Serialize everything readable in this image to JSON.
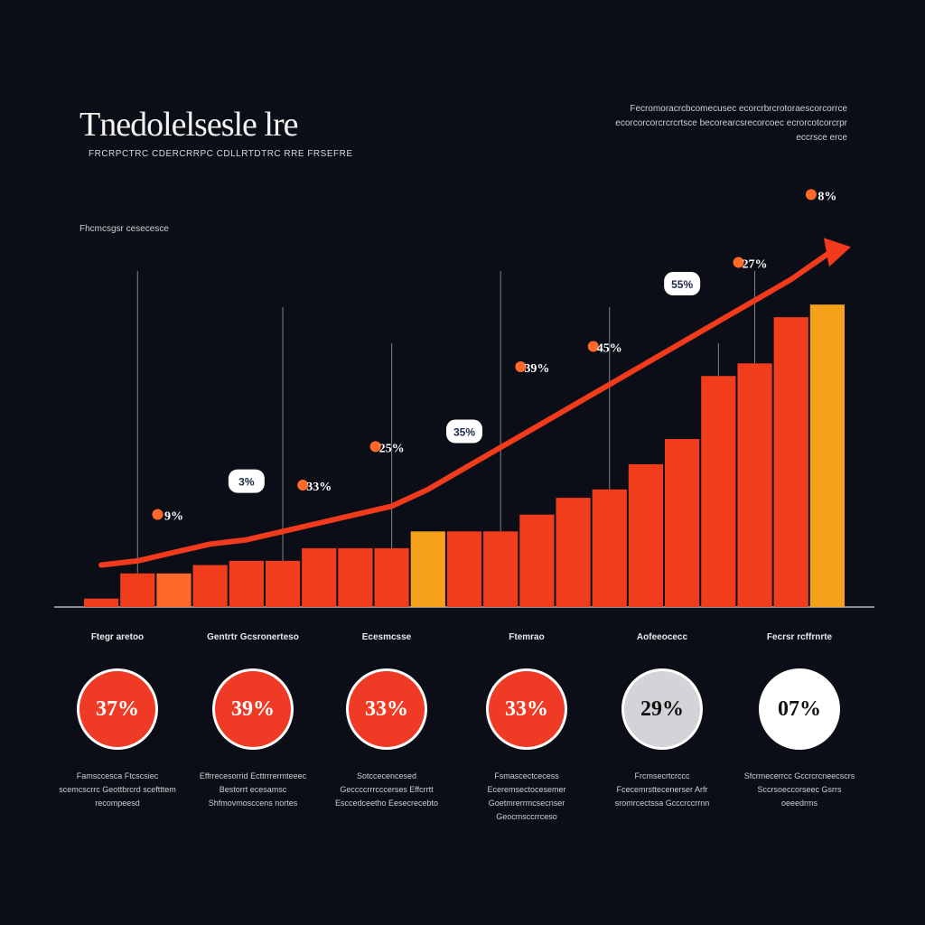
{
  "header": {
    "title": "Tnedolelsesle lre",
    "subtitle": "FRCRPCTRC CDERCRRPC CDLLRTDTRC RRE FRSEFRE",
    "note_top": "Fecromoracrcbcomecusec ecorcrbrcrotoraescorcorrce ecorcorcorcrcrcrtsce becorearcsrecorcoec ecrorcotcorcrpr eccrsce erce",
    "left_note": "Fhcmcsgsr cesecesce"
  },
  "colors": {
    "background": "#0b0e17",
    "bar_red": "#f23d1c",
    "bar_orange": "#ff6a2a",
    "bar_amber": "#f5a11a",
    "trend": "#f23a1c",
    "circle_red": "#ef3b25",
    "circle_grey": "#d4d4d8",
    "circle_white": "#ffffff"
  },
  "chart_data": {
    "type": "bar",
    "title": "Tnedolelsesle lre",
    "values": [
      2,
      8,
      8,
      10,
      11,
      11,
      14,
      14,
      14,
      18,
      18,
      18,
      22,
      26,
      28,
      34,
      40,
      55,
      58,
      69,
      72
    ],
    "bar_colors": [
      "red",
      "red",
      "orange",
      "red",
      "red",
      "red",
      "red",
      "red",
      "red",
      "amber",
      "red",
      "red",
      "red",
      "red",
      "red",
      "red",
      "red",
      "red",
      "red",
      "red",
      "amber"
    ],
    "trend_series": [
      {
        "name": "trend",
        "values": [
          10,
          11,
          13,
          15,
          16,
          18,
          20,
          22,
          24,
          28,
          33,
          38,
          43,
          48,
          53,
          58,
          63,
          68,
          73,
          78,
          84
        ]
      }
    ],
    "annotations": [
      "9%",
      "3%",
      "33%",
      "25%",
      "35%",
      "39%",
      "45%",
      "55%",
      "27%",
      "8%"
    ],
    "grid": false,
    "legend": "none"
  },
  "kpis": [
    {
      "heading": "Ftegr aretoo",
      "value": "37%",
      "desc": "Famsccesca Ftcscsiec scemcscrrc Geottbrcrd sceftttem recompeesd",
      "style": "red"
    },
    {
      "heading": "Gentrtr Gcsronerteso",
      "value": "39%",
      "desc": "Effrrecesorrid Ecttrrrermteeec Bestorrt ecesamsc Shfmovmosccens nortes",
      "style": "red"
    },
    {
      "heading": "Ecesmcsse",
      "value": "33%",
      "desc": "Sotccecencesed Geccccrrrcccerses Effcrrtt Esccedceetho Eesecrecebto",
      "style": "red"
    },
    {
      "heading": "Ftemrao",
      "value": "33%",
      "desc": "Fsmascectcecess Eceremsectocesemer Goetmrerrmcsecnser Geocmsccrrceso",
      "style": "red"
    },
    {
      "heading": "Aofeeocecc",
      "value": "29%",
      "desc": "Frcmsecrtcrccc Fcecemrsttecenerser Arfr sromrcectssa Gcccrccrrnn",
      "style": "grey"
    },
    {
      "heading": "Fecrsr rcffrnrte",
      "value": "07%",
      "desc": "Sfcrmecerrcc Gccrcrcneecscrs Sccrsoeccorseec Gsrrs oeeedrms",
      "style": "white"
    }
  ]
}
